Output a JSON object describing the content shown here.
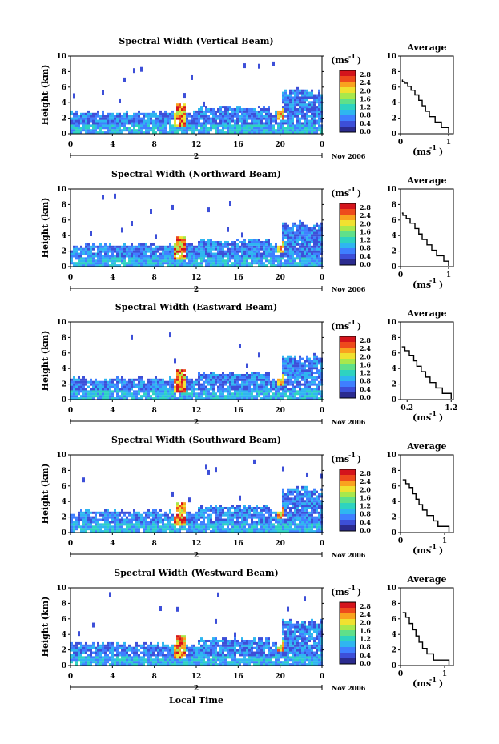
{
  "chart_data": [
    {
      "type": "heatmap",
      "title": "Spectral Width (Vertical Beam)",
      "ylabel": "Height (km)",
      "ylim": [
        0,
        10
      ],
      "xlim": [
        0,
        24
      ],
      "x_ticks": [
        "0",
        "4",
        "8",
        "12",
        "16",
        "20",
        "0"
      ],
      "date_day": "2",
      "date_month": "Nov 2006",
      "colorbar": {
        "unit": "(ms",
        "exp": "-1",
        "unit_close": ")",
        "ticks": [
          "2.8",
          "2.4",
          "2.0",
          "1.6",
          "1.2",
          "0.8",
          "0.4",
          "0.0"
        ]
      },
      "profile": {
        "title": "Average",
        "xlabel_unit": "(ms",
        "xlabel_exp": "-1",
        "xlabel_close": ")",
        "x_ticks": [
          "0",
          "1"
        ],
        "xlim": [
          0,
          1.1
        ],
        "y_ticks": [
          "0",
          "2",
          "4",
          "6",
          "8",
          "10"
        ],
        "x": [
          1.0,
          0.85,
          0.72,
          0.6,
          0.52,
          0.45,
          0.38,
          0.3,
          0.22,
          0.15,
          0.08,
          0.04,
          0.03
        ],
        "y": [
          0.1,
          0.8,
          1.5,
          2.2,
          2.9,
          3.6,
          4.3,
          5.0,
          5.6,
          6.1,
          6.5,
          6.7,
          6.9
        ]
      }
    },
    {
      "type": "heatmap",
      "title": "Spectral Width (Northward Beam)",
      "ylabel": "Height (km)",
      "ylim": [
        0,
        10
      ],
      "xlim": [
        0,
        24
      ],
      "x_ticks": [
        "0",
        "4",
        "8",
        "12",
        "16",
        "20",
        "0"
      ],
      "date_day": "2",
      "date_month": "Nov 2006",
      "colorbar": {
        "unit": "(ms",
        "exp": "-1",
        "unit_close": ")",
        "ticks": [
          "2.8",
          "2.4",
          "2.0",
          "1.6",
          "1.2",
          "0.8",
          "0.4",
          "0.0"
        ]
      },
      "profile": {
        "title": "Average",
        "xlabel_unit": "(ms",
        "xlabel_exp": "-1",
        "xlabel_close": ")",
        "x_ticks": [
          "0",
          "1"
        ],
        "xlim": [
          0,
          1.1
        ],
        "y_ticks": [
          "0",
          "2",
          "4",
          "6",
          "8",
          "10"
        ],
        "x": [
          1.0,
          0.9,
          0.75,
          0.65,
          0.55,
          0.45,
          0.38,
          0.3,
          0.2,
          0.12,
          0.05,
          0.03
        ],
        "y": [
          0.1,
          0.7,
          1.4,
          2.1,
          2.8,
          3.5,
          4.2,
          4.9,
          5.6,
          6.2,
          6.6,
          6.9
        ]
      }
    },
    {
      "type": "heatmap",
      "title": "Spectral Width (Eastward Beam)",
      "ylabel": "Height (km)",
      "ylim": [
        0,
        10
      ],
      "xlim": [
        0,
        24
      ],
      "x_ticks": [
        "0",
        "4",
        "8",
        "12",
        "16",
        "20",
        "0"
      ],
      "date_day": "2",
      "date_month": "Nov 2006",
      "colorbar": {
        "unit": "(ms",
        "exp": "-1",
        "unit_close": ")",
        "ticks": [
          "2.8",
          "2.4",
          "2.0",
          "1.6",
          "1.2",
          "0.8",
          "0.4",
          "0.0"
        ]
      },
      "profile": {
        "title": "Average",
        "xlabel_unit": "(ms",
        "xlabel_exp": "-1",
        "xlabel_close": ")",
        "x_ticks": [
          "0.2",
          "1.2"
        ],
        "xlim": [
          0.05,
          1.25
        ],
        "y_ticks": [
          "0",
          "2",
          "4",
          "6",
          "8",
          "10"
        ],
        "x": [
          1.2,
          1.0,
          0.85,
          0.72,
          0.62,
          0.52,
          0.42,
          0.35,
          0.25,
          0.15,
          0.08
        ],
        "y": [
          0.1,
          0.8,
          1.5,
          2.2,
          2.9,
          3.6,
          4.3,
          5.0,
          5.7,
          6.3,
          6.8
        ]
      }
    },
    {
      "type": "heatmap",
      "title": "Spectral Width (Southward Beam)",
      "ylabel": "Height (km)",
      "ylim": [
        0,
        10
      ],
      "xlim": [
        0,
        24
      ],
      "x_ticks": [
        "0",
        "4",
        "8",
        "12",
        "16",
        "20",
        "0"
      ],
      "date_day": "2",
      "date_month": "Nov 2006",
      "colorbar": {
        "unit": "(ms",
        "exp": "-1",
        "unit_close": ")",
        "ticks": [
          "2.8",
          "2.4",
          "2.0",
          "1.6",
          "1.2",
          "0.8",
          "0.4",
          "0.0"
        ]
      },
      "profile": {
        "title": "Average",
        "xlabel_unit": "(ms",
        "xlabel_exp": "-1",
        "xlabel_close": ")",
        "x_ticks": [
          "0",
          "1"
        ],
        "xlim": [
          0,
          1.2
        ],
        "y_ticks": [
          "0",
          "2",
          "4",
          "6",
          "8",
          "10"
        ],
        "x": [
          1.1,
          0.85,
          0.75,
          0.6,
          0.5,
          0.42,
          0.35,
          0.28,
          0.2,
          0.12,
          0.05
        ],
        "y": [
          0.1,
          0.8,
          1.5,
          2.2,
          2.9,
          3.6,
          4.3,
          5.0,
          5.8,
          6.3,
          6.8
        ]
      }
    },
    {
      "type": "heatmap",
      "title": "Spectral Width (Westward Beam)",
      "ylabel": "Height (km)",
      "ylim": [
        0,
        10
      ],
      "xlim": [
        0,
        24
      ],
      "x_ticks": [
        "0",
        "4",
        "8",
        "12",
        "16",
        "20",
        "0"
      ],
      "date_day": "2",
      "date_month": "Nov 2006",
      "colorbar": {
        "unit": "(ms",
        "exp": "-1",
        "unit_close": ")",
        "ticks": [
          "2.8",
          "2.4",
          "2.0",
          "1.6",
          "1.2",
          "0.8",
          "0.4",
          "0.0"
        ]
      },
      "profile": {
        "title": "Average",
        "xlabel_unit": "(ms",
        "xlabel_exp": "-1",
        "xlabel_close": ")",
        "x_ticks": [
          "0",
          "1"
        ],
        "xlim": [
          0,
          1.2
        ],
        "y_ticks": [
          "0",
          "2",
          "4",
          "6",
          "8",
          "10"
        ],
        "x": [
          1.1,
          0.75,
          0.6,
          0.5,
          0.42,
          0.35,
          0.28,
          0.2,
          0.12,
          0.05
        ],
        "y": [
          0.1,
          0.7,
          1.5,
          2.2,
          3.0,
          3.8,
          4.6,
          5.4,
          6.2,
          6.8
        ]
      }
    }
  ],
  "footer": {
    "xlabel": "Local Time"
  },
  "colors": {
    "colormap": [
      "#2b2b8f",
      "#3d4fd8",
      "#3f7fff",
      "#2fb6f0",
      "#2ed3c0",
      "#5fe08a",
      "#a8e84c",
      "#f0e130",
      "#f9a21f",
      "#ee4a1c",
      "#d4141c"
    ]
  }
}
